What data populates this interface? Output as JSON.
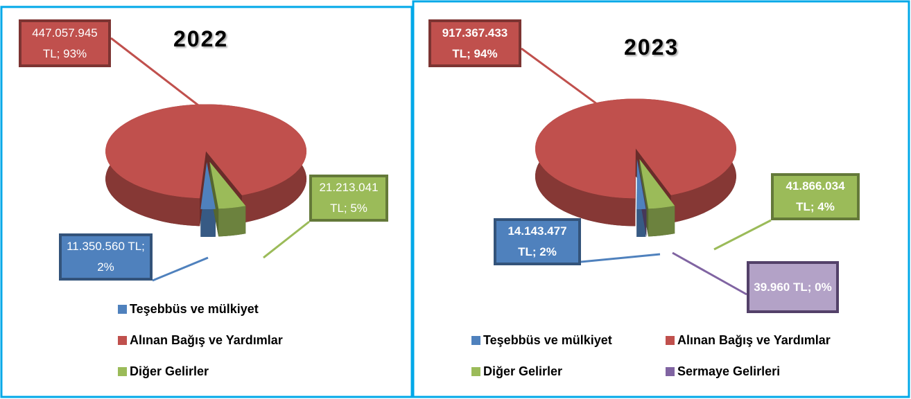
{
  "chart_data": [
    {
      "type": "pie",
      "title": "2022",
      "categories": [
        "Teşebbüs ve mülkiyet",
        "Alınan Bağış ve Yardımlar",
        "Diğer Gelirler"
      ],
      "values": [
        11350560,
        447057945,
        21213041
      ],
      "value_labels": [
        "11.350.560 TL; 2%",
        "447.057.945 TL; 93%",
        "21.213.041 TL; 5%"
      ],
      "colors": [
        "#4f81bd",
        "#c0504d",
        "#9bbb59"
      ]
    },
    {
      "type": "pie",
      "title": "2023",
      "categories": [
        "Teşebbüs ve mülkiyet",
        "Alınan Bağış ve Yardımlar",
        "Diğer Gelirler",
        "Sermaye Gelirleri"
      ],
      "values": [
        14143477,
        917367433,
        41866034,
        39960
      ],
      "value_labels": [
        "14.143.477 TL; 2%",
        "917.367.433 TL; 94%",
        "41.866.034 TL; 4%",
        "39.960 TL; 0%"
      ],
      "colors": [
        "#4f81bd",
        "#c0504d",
        "#9bbb59",
        "#8064a2"
      ]
    }
  ]
}
